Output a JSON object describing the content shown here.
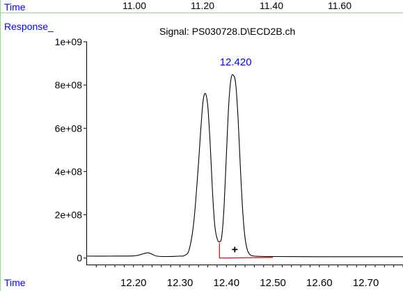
{
  "header": {
    "time_label": "Time",
    "response_label": "Response_",
    "signal_title": "Signal: PS030728.D\\ECD2B.ch",
    "top_ticks": [
      "11.00",
      "11.20",
      "11.40",
      "11.60"
    ]
  },
  "footer": {
    "time_label": "Time"
  },
  "colors": {
    "frame_green": "#8dd88d",
    "label_blue": "#0000ff",
    "trace": "#000000",
    "baseline_red": "#e00000"
  },
  "chart_data": {
    "type": "line",
    "title": "Signal: PS030728.D\\ECD2B.ch",
    "xlabel": "Time",
    "ylabel": "Response_",
    "xlim": [
      12.1,
      12.78
    ],
    "ylim": [
      -30000000,
      1000000000
    ],
    "x_ticks": [
      12.2,
      12.3,
      12.4,
      12.5,
      12.6,
      12.7
    ],
    "x_tick_labels": [
      "12.20",
      "12.30",
      "12.40",
      "12.50",
      "12.60",
      "12.70"
    ],
    "y_ticks": [
      0,
      200000000,
      400000000,
      600000000,
      800000000,
      1000000000
    ],
    "y_tick_labels": [
      "0",
      "2e+08",
      "4e+08",
      "6e+08",
      "8e+08",
      "1e+09"
    ],
    "peak_label": "12.420",
    "marker": "+",
    "series": [
      {
        "x": [
          12.1,
          12.15,
          12.2,
          12.215,
          12.225,
          12.232,
          12.24,
          12.25,
          12.27,
          12.3,
          12.31,
          12.32,
          12.33,
          12.34,
          12.345,
          12.35,
          12.355,
          12.36,
          12.365,
          12.37,
          12.375,
          12.38,
          12.385,
          12.39,
          12.395,
          12.4,
          12.405,
          12.41,
          12.415,
          12.42,
          12.425,
          12.43,
          12.435,
          12.44,
          12.445,
          12.45,
          12.455,
          12.46,
          12.47,
          12.5,
          12.6,
          12.7,
          12.78
        ],
        "values": [
          9000000,
          9000000,
          10000000,
          16000000,
          22000000,
          24000000,
          18000000,
          9000000,
          7000000,
          9000000,
          12000000,
          40000000,
          170000000,
          440000000,
          600000000,
          730000000,
          760000000,
          700000000,
          530000000,
          310000000,
          150000000,
          90000000,
          75000000,
          100000000,
          240000000,
          480000000,
          710000000,
          830000000,
          845000000,
          805000000,
          650000000,
          420000000,
          220000000,
          95000000,
          38000000,
          17000000,
          11000000,
          9000000,
          8000000,
          7000000,
          6000000,
          6000000,
          6000000
        ]
      }
    ],
    "integration_baseline": {
      "x": [
        12.385,
        12.385,
        12.5
      ],
      "values": [
        70000000,
        0,
        3000000
      ]
    },
    "marker_point": {
      "x": 12.418,
      "y": 40000000
    }
  }
}
